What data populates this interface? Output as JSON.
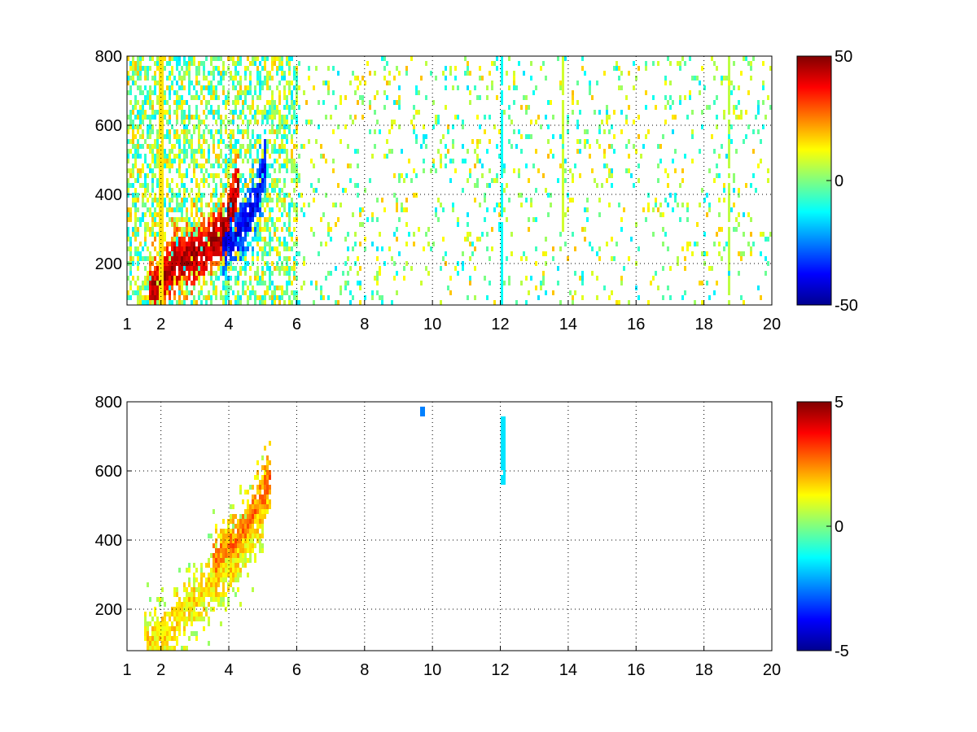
{
  "chart_data": [
    {
      "type": "heatmap",
      "title": "",
      "xlabel": "",
      "ylabel": "",
      "xlim": [
        1,
        20
      ],
      "ylim": [
        80,
        800
      ],
      "xticks": [
        1,
        2,
        4,
        6,
        8,
        10,
        12,
        14,
        16,
        18,
        20
      ],
      "yticks": [
        200,
        400,
        600,
        800
      ],
      "grid": true,
      "colormap": "jet",
      "clim": [
        -50,
        50
      ],
      "colorbar_ticks": [
        -50,
        0,
        50
      ],
      "features": [
        {
          "kind": "ridge",
          "label": "positive",
          "x": [
            1.6,
            2.0,
            2.4,
            2.7,
            3.0,
            3.4,
            3.8,
            4.1,
            4.3
          ],
          "y": [
            110,
            160,
            210,
            225,
            230,
            260,
            300,
            380,
            460
          ],
          "value": 45
        },
        {
          "kind": "ridge",
          "label": "negative",
          "x": [
            3.8,
            4.2,
            4.5,
            4.8,
            5.0,
            5.1
          ],
          "y": [
            265,
            290,
            330,
            400,
            470,
            540
          ],
          "value": -38
        },
        {
          "kind": "column",
          "x": 12.0,
          "y": [
            80,
            800
          ],
          "value": -12
        },
        {
          "kind": "column",
          "x": 1.95,
          "y": [
            80,
            800
          ],
          "value": 15
        },
        {
          "kind": "column",
          "x": 13.8,
          "y": [
            300,
            800
          ],
          "value": 8
        },
        {
          "kind": "column",
          "x": 18.7,
          "y": [
            80,
            800
          ],
          "value": 6
        }
      ]
    },
    {
      "type": "heatmap",
      "title": "",
      "xlabel": "",
      "ylabel": "",
      "xlim": [
        1,
        20
      ],
      "ylim": [
        80,
        800
      ],
      "xticks": [
        1,
        2,
        4,
        6,
        8,
        10,
        12,
        14,
        16,
        18,
        20
      ],
      "yticks": [
        200,
        400,
        600,
        800
      ],
      "grid": true,
      "colormap": "jet",
      "clim": [
        -5,
        5
      ],
      "colorbar_ticks": [
        -5,
        0,
        5
      ],
      "features": [
        {
          "kind": "ridge",
          "label": "band",
          "x": [
            1.5,
            2.0,
            2.5,
            3.0,
            3.5,
            4.0,
            4.5,
            5.0
          ],
          "y": [
            100,
            130,
            190,
            230,
            280,
            330,
            400,
            470
          ],
          "value": 1.5
        },
        {
          "kind": "ridge",
          "label": "band-upper",
          "x": [
            3.5,
            4.0,
            4.5,
            5.0,
            5.2
          ],
          "y": [
            330,
            380,
            450,
            540,
            600
          ],
          "value": 2.5
        },
        {
          "kind": "column",
          "x": 12.05,
          "y": [
            565,
            760
          ],
          "value": -1.5
        },
        {
          "kind": "column",
          "x": 9.65,
          "y": [
            760,
            790
          ],
          "value": -2.5
        }
      ]
    }
  ]
}
